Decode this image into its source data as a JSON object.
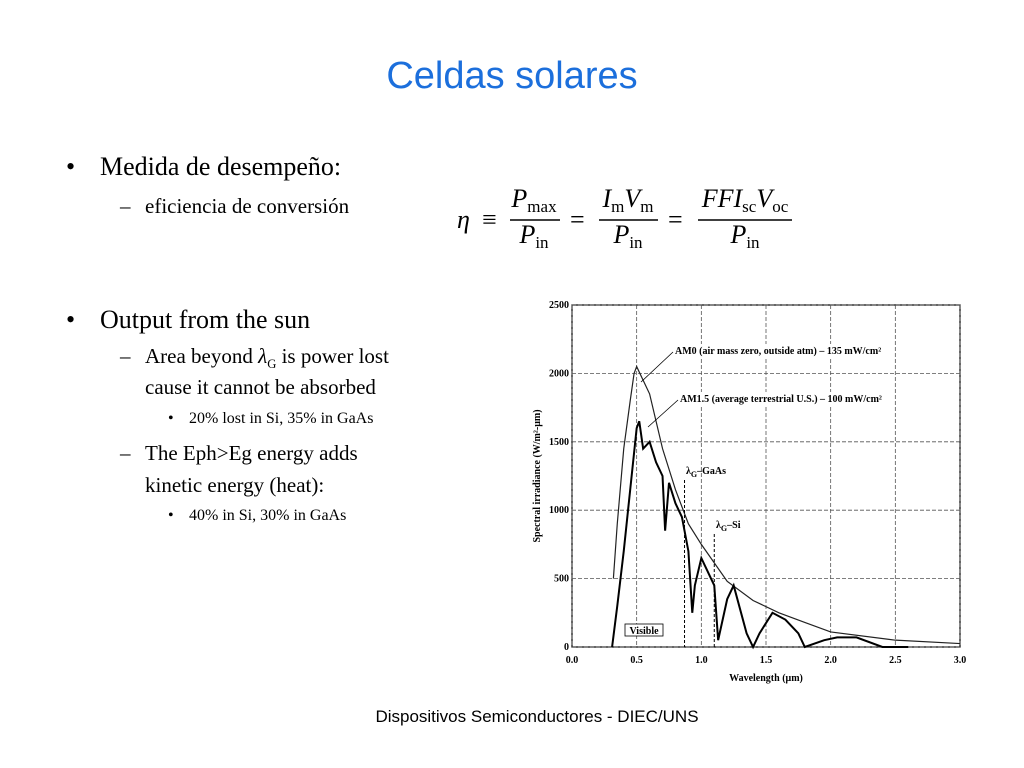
{
  "header": {
    "title": "Celdas solares"
  },
  "bullet_marks": {
    "level1": "•",
    "level2": "–",
    "level3": "•"
  },
  "bullets": [
    {
      "text": "Medida de desempeño:",
      "children": [
        {
          "text": "eficiencia de conversión"
        }
      ]
    },
    {
      "text": "Output from the sun",
      "children": [
        {
          "before": "Area beyond ",
          "symbol": "λ",
          "sub": "G",
          "after": " is power lost",
          "line2": "cause it cannot be absorbed",
          "children": [
            {
              "text": "20% lost in Si, 35% in GaAs"
            }
          ]
        },
        {
          "line1": "The Eph>Eg energy adds",
          "line2": "kinetic energy (heat):",
          "children": [
            {
              "text": "40% in Si, 30% in GaAs"
            }
          ]
        }
      ]
    }
  ],
  "equation": {
    "lhs": "η",
    "relation": "≡",
    "equals": "=",
    "fractions": [
      {
        "numerator": [
          {
            "base": "P",
            "sub": "max"
          }
        ],
        "denominator": {
          "base": "P",
          "sub": "in"
        }
      },
      {
        "numerator": [
          {
            "base": "I",
            "sub": "m"
          },
          {
            "base": "V",
            "sub": "m"
          }
        ],
        "denominator": {
          "base": "P",
          "sub": "in"
        }
      },
      {
        "numerator": [
          {
            "base": "FFI",
            "sub": "sc"
          },
          {
            "base": "V",
            "sub": "oc"
          }
        ],
        "denominator": {
          "base": "P",
          "sub": "in"
        }
      }
    ]
  },
  "chart_data": {
    "type": "line",
    "xlabel": "Wavelength (μm)",
    "ylabel": "Spectral irradiance (W/m²-μm)",
    "xlim": [
      0,
      3
    ],
    "ylim": [
      0,
      2500
    ],
    "xticks": [
      {
        "value": 0,
        "label": "0.0"
      },
      0.5,
      {
        "value": 1,
        "label": "1.0"
      },
      1.5,
      {
        "value": 2,
        "label": "2.0"
      },
      2.5,
      {
        "value": 3,
        "label": "3.0"
      }
    ],
    "yticks": [
      0,
      500,
      1000,
      1500,
      2000,
      2500
    ],
    "grid": true,
    "series": [
      {
        "color": "#222222",
        "x": [
          0.32,
          0.35,
          0.4,
          0.45,
          0.48,
          0.5,
          0.55,
          0.6,
          0.7,
          0.8,
          0.9,
          1.0,
          1.2,
          1.4,
          1.6,
          1.8,
          2.0,
          2.5,
          3.0
        ],
        "values": [
          500,
          900,
          1450,
          1800,
          2000,
          2050,
          1950,
          1850,
          1450,
          1150,
          900,
          750,
          480,
          340,
          250,
          180,
          110,
          50,
          25
        ]
      },
      {
        "color": "#000000",
        "x": [
          0.31,
          0.35,
          0.4,
          0.45,
          0.5,
          0.52,
          0.55,
          0.6,
          0.65,
          0.7,
          0.72,
          0.75,
          0.8,
          0.85,
          0.9,
          0.93,
          0.95,
          1.0,
          1.1,
          1.13,
          1.2,
          1.25,
          1.35,
          1.4,
          1.45,
          1.55,
          1.65,
          1.75,
          1.8,
          1.95,
          2.05,
          2.2,
          2.4,
          2.6
        ],
        "values": [
          0,
          300,
          700,
          1150,
          1600,
          1650,
          1450,
          1500,
          1350,
          1250,
          850,
          1200,
          1050,
          950,
          700,
          250,
          450,
          650,
          450,
          50,
          350,
          450,
          100,
          0,
          100,
          250,
          200,
          100,
          0,
          50,
          70,
          70,
          0,
          0
        ]
      }
    ],
    "annotations": [
      {
        "text": "AM0 (air mass zero, outside atm) – 135 mW/cm²"
      },
      {
        "text": "AM1.5 (average terrestrial U.S.) – 100 mW/cm²"
      },
      {
        "symbol": "λ",
        "sub": "G",
        "text": "–GaAs",
        "x": 0.87
      },
      {
        "symbol": "λ",
        "sub": "G",
        "text": "–Si",
        "x": 1.1
      },
      {
        "text": "Visible"
      }
    ]
  },
  "footer": {
    "text": "Dispositivos Semiconductores - DIEC/UNS"
  }
}
